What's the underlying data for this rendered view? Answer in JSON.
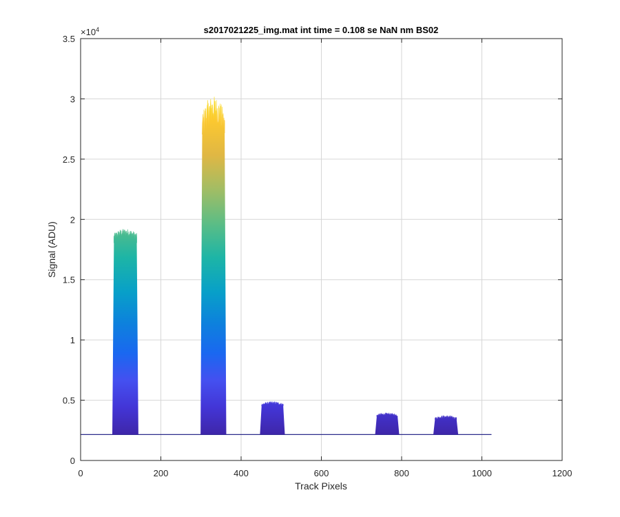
{
  "chart_data": {
    "type": "area",
    "title": "s2017021225_img.mat int time = 0.108 se  NaN nm BS02",
    "xlabel": "Track Pixels",
    "ylabel": "Signal (ADU)",
    "xlim": [
      0,
      1200
    ],
    "ylim": [
      0,
      35000
    ],
    "xticks": [
      0,
      200,
      400,
      600,
      800,
      1000,
      1200
    ],
    "xtick_labels": [
      "0",
      "200",
      "400",
      "600",
      "800",
      "1000",
      "1200"
    ],
    "yticks": [
      0,
      5000,
      10000,
      15000,
      20000,
      25000,
      30000,
      35000
    ],
    "ytick_labels": [
      "0",
      "0.5",
      "1",
      "1.5",
      "2",
      "2.5",
      "3",
      "3.5"
    ],
    "y_exponent": {
      "base": "×10",
      "power": "4"
    },
    "grid": true,
    "colormap": "parula",
    "baseline": 2150,
    "x_extent": [
      0,
      1024
    ],
    "peaks": [
      {
        "name": "peak-1",
        "x_start": 80,
        "x_end": 143,
        "max": 19300,
        "top_level": 18600
      },
      {
        "name": "peak-2",
        "x_start": 300,
        "x_end": 362,
        "max": 30500,
        "top_level": 28000
      },
      {
        "name": "peak-3",
        "x_start": 448,
        "x_end": 508,
        "max": 4900,
        "top_level": 4650
      },
      {
        "name": "peak-4",
        "x_start": 735,
        "x_end": 793,
        "max": 3950,
        "top_level": 3750
      },
      {
        "name": "peak-5",
        "x_start": 880,
        "x_end": 940,
        "max": 3750,
        "top_level": 3500
      }
    ]
  }
}
